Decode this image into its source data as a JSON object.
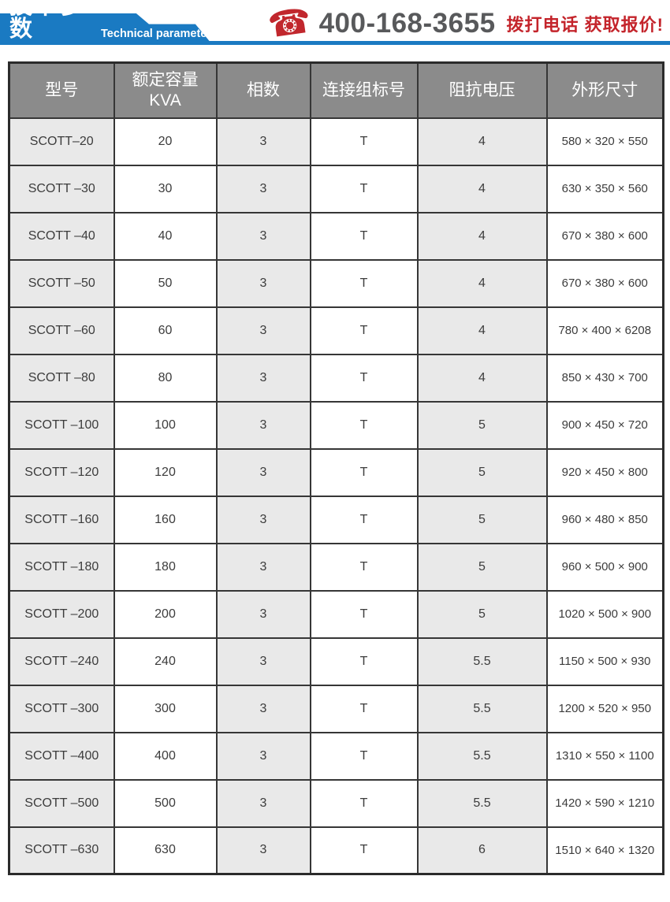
{
  "header": {
    "title": "技术参数",
    "subtitle": "Technical parameter",
    "phone_icon": "telephone-icon",
    "phone_glyph": "☎",
    "phone_number": "400-168-3655",
    "cta": "拨打电话 获取报价!"
  },
  "colors": {
    "brand_blue": "#1a7ac2",
    "accent_red": "#c4242b",
    "phone_gray": "#58595b",
    "header_gray": "#8b8b8b",
    "cell_gray": "#e9e9e9"
  },
  "table": {
    "columns": [
      "型号",
      "额定容量\nKVA",
      "相数",
      "连接组标号",
      "阻抗电压",
      "外形尺寸"
    ],
    "rows": [
      [
        "SCOTT–20",
        "20",
        "3",
        "T",
        "4",
        "580 × 320 × 550"
      ],
      [
        "SCOTT –30",
        "30",
        "3",
        "T",
        "4",
        "630 × 350 × 560"
      ],
      [
        "SCOTT –40",
        "40",
        "3",
        "T",
        "4",
        "670 × 380 × 600"
      ],
      [
        "SCOTT –50",
        "50",
        "3",
        "T",
        "4",
        "670 × 380 × 600"
      ],
      [
        "SCOTT –60",
        "60",
        "3",
        "T",
        "4",
        "780 × 400 × 6208"
      ],
      [
        "SCOTT –80",
        "80",
        "3",
        "T",
        "4",
        "850 × 430 × 700"
      ],
      [
        "SCOTT –100",
        "100",
        "3",
        "T",
        "5",
        "900 × 450 × 720"
      ],
      [
        "SCOTT –120",
        "120",
        "3",
        "T",
        "5",
        "920 × 450 × 800"
      ],
      [
        "SCOTT –160",
        "160",
        "3",
        "T",
        "5",
        "960 × 480 × 850"
      ],
      [
        "SCOTT –180",
        "180",
        "3",
        "T",
        "5",
        "960 × 500 × 900"
      ],
      [
        "SCOTT –200",
        "200",
        "3",
        "T",
        "5",
        "1020 × 500 × 900"
      ],
      [
        "SCOTT –240",
        "240",
        "3",
        "T",
        "5.5",
        "1150 × 500 × 930"
      ],
      [
        "SCOTT –300",
        "300",
        "3",
        "T",
        "5.5",
        "1200 × 520 × 950"
      ],
      [
        "SCOTT –400",
        "400",
        "3",
        "T",
        "5.5",
        "1310 × 550 × 1100"
      ],
      [
        "SCOTT –500",
        "500",
        "3",
        "T",
        "5.5",
        "1420 × 590 × 1210"
      ],
      [
        "SCOTT –630",
        "630",
        "3",
        "T",
        "6",
        "1510 × 640 × 1320"
      ]
    ]
  }
}
